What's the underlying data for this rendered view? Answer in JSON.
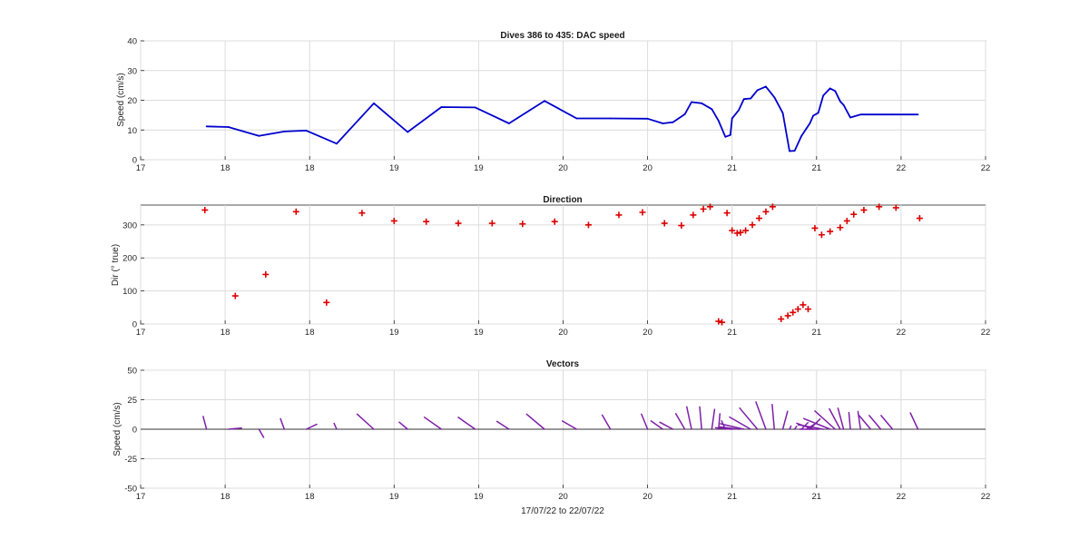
{
  "figure": {
    "colors": {
      "speed_line": "#0000cd",
      "direction_markers": "#dd0000",
      "vectors": "#7e1fa8",
      "zero_line": "#333333"
    }
  },
  "chart_data": [
    {
      "type": "line",
      "title": "Dives 386 to 435: DAC speed",
      "xlabel": "",
      "ylabel": "Speed (cm/s)",
      "xlim": [
        17.0,
        22.0
      ],
      "ylim": [
        0,
        40
      ],
      "yticks": [
        0,
        10,
        20,
        30,
        40
      ],
      "xtick_values": [
        17.0,
        17.5,
        18.0,
        18.5,
        19.0,
        19.5,
        20.0,
        20.5,
        21.0,
        21.5,
        22.0
      ],
      "xtick_labels": [
        "17",
        "18",
        "18",
        "19",
        "19",
        "20",
        "20",
        "21",
        "21",
        "22",
        "22"
      ],
      "grid": true,
      "series": [
        {
          "x": [
            17.39,
            17.52,
            17.7,
            17.85,
            17.98,
            18.16,
            18.38,
            18.58,
            18.78,
            18.98,
            19.18,
            19.39,
            19.58,
            19.78,
            20.0,
            20.09,
            20.15,
            20.22,
            20.26,
            20.32,
            20.38,
            20.42,
            20.46,
            20.49,
            20.5,
            20.54,
            20.57,
            20.61,
            20.65,
            20.7,
            20.75,
            20.8,
            20.84,
            20.87,
            20.91,
            20.94,
            20.96,
            20.98,
            21.01,
            21.04,
            21.08,
            21.11,
            21.14,
            21.16,
            21.2,
            21.26,
            21.32,
            21.38,
            21.45,
            21.6
          ],
          "y": [
            11.2,
            11.0,
            8.0,
            9.5,
            9.8,
            5.4,
            19.0,
            9.3,
            17.7,
            17.6,
            12.2,
            19.8,
            13.9,
            13.9,
            13.8,
            12.2,
            12.6,
            15.3,
            19.4,
            19.0,
            17.0,
            13.1,
            7.7,
            8.3,
            13.9,
            16.7,
            20.4,
            20.6,
            23.4,
            24.6,
            21.0,
            15.7,
            2.9,
            3.0,
            7.9,
            10.5,
            12.2,
            14.8,
            15.8,
            21.6,
            24.0,
            23.1,
            19.6,
            18.4,
            14.2,
            15.2,
            15.2,
            15.2,
            15.2,
            15.2
          ]
        }
      ]
    },
    {
      "type": "scatter",
      "title": "Direction",
      "xlabel": "",
      "ylabel": "Dir (° true)",
      "xlim": [
        17.0,
        22.0
      ],
      "ylim": [
        0,
        360
      ],
      "yticks": [
        0,
        100,
        200,
        300
      ],
      "xtick_values": [
        17.0,
        17.5,
        18.0,
        18.5,
        19.0,
        19.5,
        20.0,
        20.5,
        21.0,
        21.5,
        22.0
      ],
      "xtick_labels": [
        "17",
        "18",
        "18",
        "19",
        "19",
        "20",
        "20",
        "21",
        "21",
        "22",
        "22"
      ],
      "grid": true,
      "marker": "+",
      "series": [
        {
          "x": [
            17.38,
            17.56,
            17.74,
            17.92,
            18.1,
            18.31,
            18.5,
            18.69,
            18.88,
            19.08,
            19.26,
            19.45,
            19.65,
            19.83,
            19.97,
            20.1,
            20.2,
            20.27,
            20.33,
            20.37,
            20.42,
            20.44,
            20.47,
            20.5,
            20.53,
            20.55,
            20.58,
            20.62,
            20.66,
            20.7,
            20.74,
            20.79,
            20.83,
            20.86,
            20.89,
            20.92,
            20.95,
            20.99,
            21.03,
            21.08,
            21.14,
            21.18,
            21.22,
            21.28,
            21.37,
            21.47,
            21.61
          ],
          "y": [
            345,
            85,
            150,
            340,
            65,
            336,
            312,
            310,
            305,
            305,
            303,
            310,
            300,
            330,
            338,
            305,
            298,
            330,
            348,
            355,
            8,
            5,
            336,
            283,
            275,
            277,
            283,
            300,
            320,
            340,
            355,
            15,
            25,
            35,
            45,
            58,
            45,
            290,
            270,
            280,
            292,
            312,
            332,
            345,
            355,
            352,
            320
          ]
        }
      ]
    },
    {
      "type": "vector",
      "title": "Vectors",
      "xlabel": "17/07/22 to 22/07/22",
      "ylabel": "Speed (cm/s)",
      "xlim": [
        17.0,
        22.0
      ],
      "ylim": [
        -50,
        50
      ],
      "yticks": [
        -50,
        -25,
        0,
        25,
        50
      ],
      "xtick_values": [
        17.0,
        17.5,
        18.0,
        18.5,
        19.0,
        19.5,
        20.0,
        20.5,
        21.0,
        21.5,
        22.0
      ],
      "xtick_labels": [
        "17",
        "18",
        "18",
        "19",
        "19",
        "20",
        "20",
        "21",
        "21",
        "22",
        "22"
      ],
      "grid": true,
      "units": "cm/s",
      "vectors": {
        "x": [
          17.39,
          17.52,
          17.7,
          17.85,
          17.98,
          18.16,
          18.38,
          18.58,
          18.78,
          18.98,
          19.18,
          19.39,
          19.58,
          19.78,
          20.0,
          20.09,
          20.15,
          20.22,
          20.26,
          20.32,
          20.38,
          20.42,
          20.46,
          20.49,
          20.5,
          20.54,
          20.57,
          20.61,
          20.65,
          20.7,
          20.75,
          20.8,
          20.84,
          20.87,
          20.91,
          20.94,
          20.96,
          20.98,
          21.01,
          21.04,
          21.08,
          21.11,
          21.14,
          21.16,
          21.2,
          21.26,
          21.32,
          21.38,
          21.45,
          21.6
        ],
        "speed": [
          11.2,
          11.0,
          8.0,
          9.5,
          9.8,
          5.4,
          19.0,
          9.3,
          17.7,
          17.6,
          12.2,
          19.8,
          13.9,
          13.9,
          13.8,
          12.2,
          12.6,
          15.3,
          19.4,
          19.0,
          17.0,
          13.1,
          7.7,
          8.3,
          13.9,
          16.7,
          20.4,
          20.6,
          23.4,
          24.6,
          21.0,
          15.7,
          2.9,
          3.0,
          7.9,
          10.5,
          12.2,
          14.8,
          15.8,
          21.6,
          24.0,
          23.1,
          19.6,
          18.4,
          14.2,
          15.2,
          15.2,
          15.2,
          15.2,
          15.2
        ],
        "direction": [
          345,
          85,
          150,
          340,
          65,
          336,
          312,
          310,
          305,
          305,
          303,
          310,
          300,
          330,
          338,
          305,
          298,
          330,
          348,
          355,
          8,
          5,
          336,
          283,
          275,
          277,
          283,
          300,
          320,
          340,
          355,
          15,
          25,
          35,
          45,
          58,
          45,
          290,
          270,
          280,
          292,
          312,
          332,
          345,
          355,
          352,
          320,
          320,
          320,
          335
        ]
      }
    }
  ]
}
